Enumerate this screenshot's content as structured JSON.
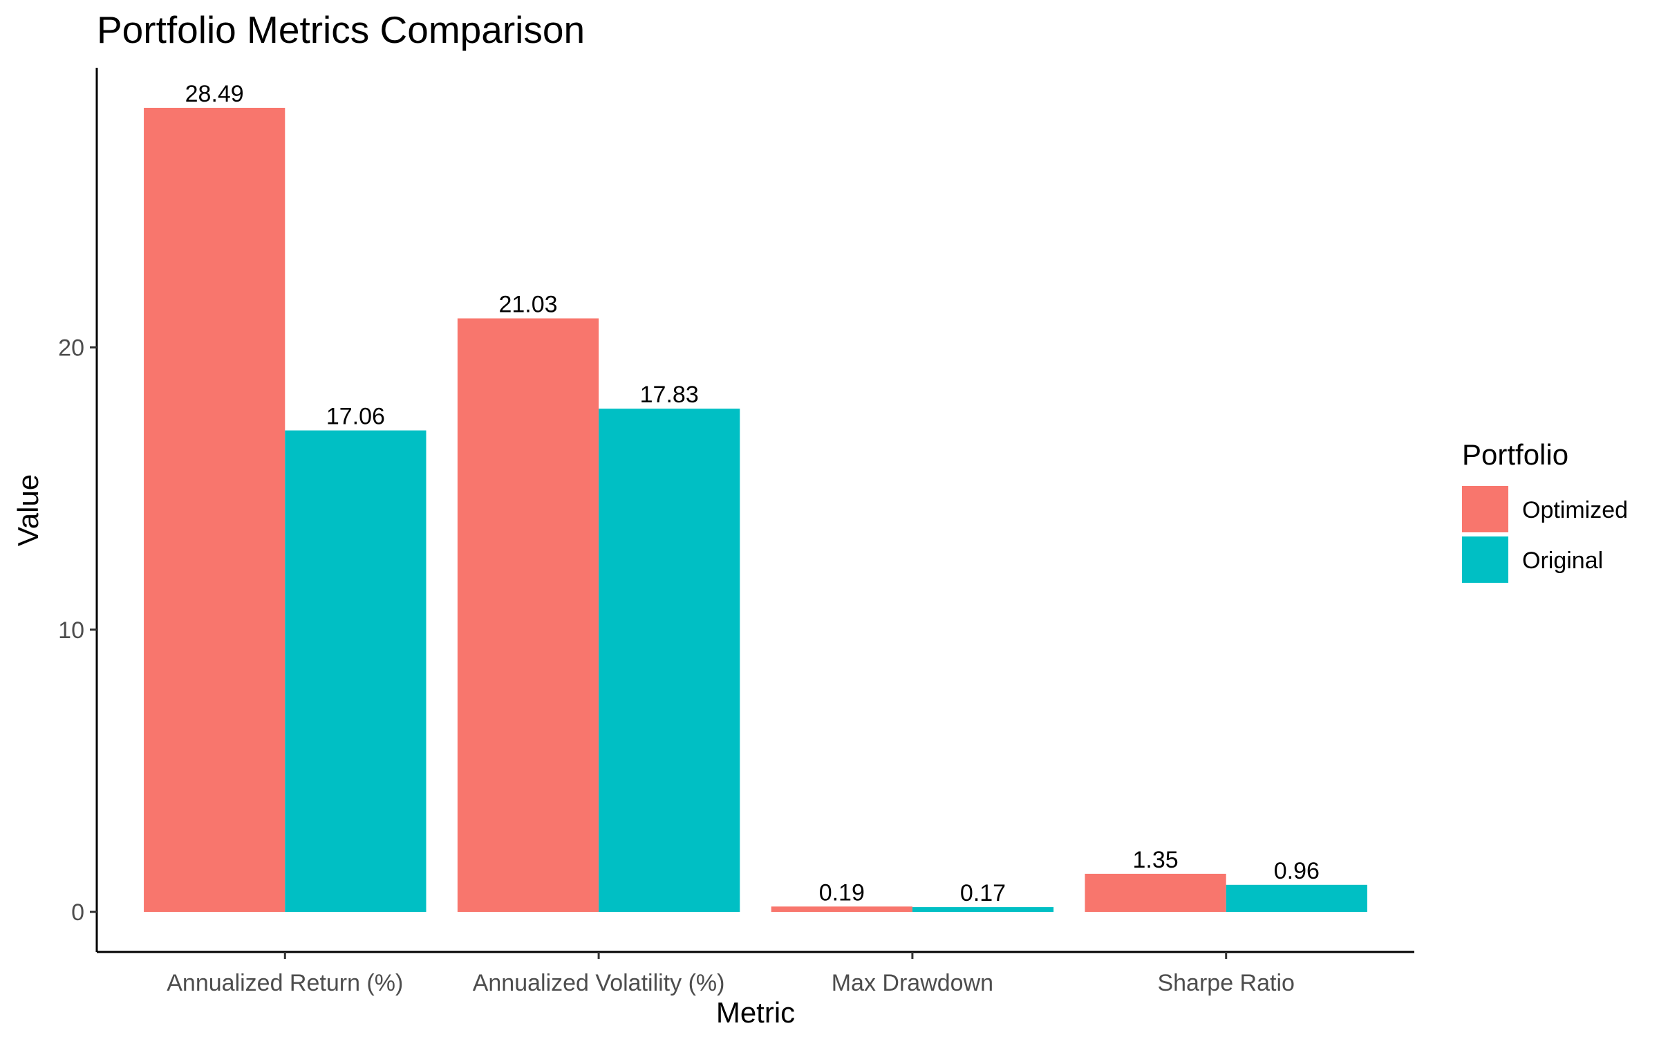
{
  "chart_data": {
    "type": "bar",
    "title": "Portfolio Metrics Comparison",
    "xlabel": "Metric",
    "ylabel": "Value",
    "categories": [
      "Annualized Return (%)",
      "Annualized Volatility (%)",
      "Max Drawdown",
      "Sharpe Ratio"
    ],
    "series": [
      {
        "name": "Optimized",
        "values": [
          28.49,
          21.03,
          0.19,
          1.35
        ],
        "labels": [
          "28.49",
          "21.03",
          "0.19",
          "1.35"
        ],
        "color": "#F8766D"
      },
      {
        "name": "Original",
        "values": [
          17.06,
          17.83,
          0.17,
          0.96
        ],
        "labels": [
          "17.06",
          "17.83",
          "0.17",
          "0.96"
        ],
        "color": "#00BFC4"
      }
    ],
    "yticks": [
      0,
      10,
      20
    ],
    "ylim": [
      -1.42,
      29.91
    ],
    "grid": false,
    "legend": {
      "title": "Portfolio",
      "position": "right"
    }
  }
}
